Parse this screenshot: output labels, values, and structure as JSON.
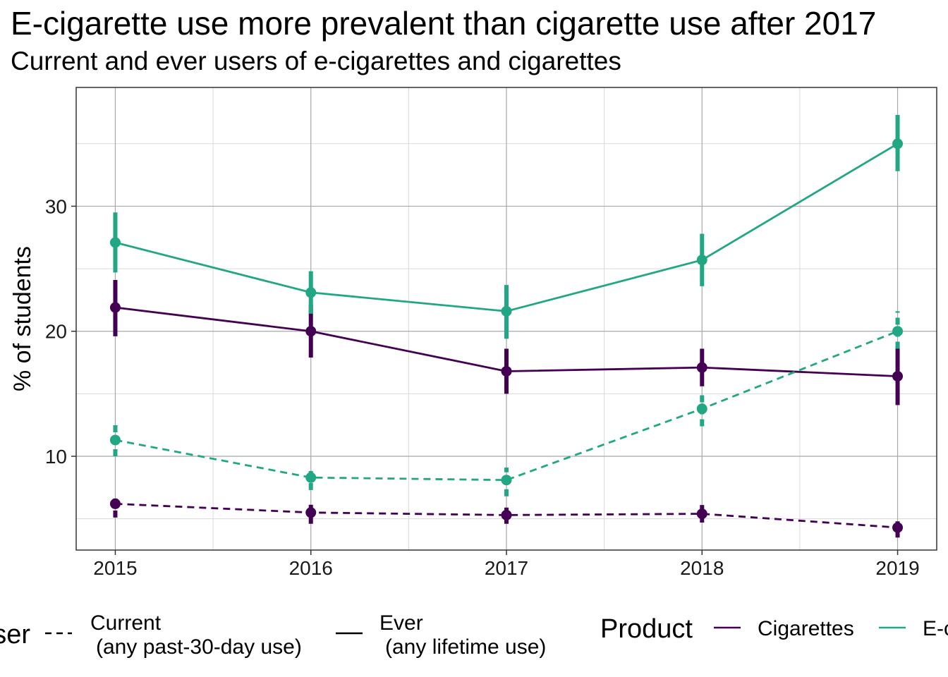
{
  "chart_data": {
    "type": "line",
    "title": "E-cigarette use more prevalent than cigarette use after 2017",
    "subtitle": "Current and ever users of e-cigarettes and cigarettes",
    "xlabel": "",
    "ylabel": "% of students",
    "x": [
      2015,
      2016,
      2017,
      2018,
      2019
    ],
    "x_tick_labels": [
      "2015",
      "2016",
      "2017",
      "2018",
      "2019"
    ],
    "y_ticks": [
      10,
      20,
      30
    ],
    "y_tick_labels": [
      "10",
      "20",
      "30"
    ],
    "xlim": [
      2014.8,
      2019.2
    ],
    "ylim": [
      2.5,
      39.5
    ],
    "grid": true,
    "series": [
      {
        "name": "Cigarettes — Ever",
        "product": "Cigarettes",
        "user": "Ever",
        "color": "#440154",
        "dash": "solid",
        "values": [
          21.9,
          20.0,
          16.8,
          17.1,
          16.4
        ],
        "lower": [
          19.6,
          17.9,
          15.0,
          15.6,
          14.1
        ],
        "upper": [
          24.1,
          22.1,
          18.6,
          18.6,
          18.7
        ]
      },
      {
        "name": "E-cigarettes — Ever",
        "product": "E-cigarettes",
        "user": "Ever",
        "color": "#21A784",
        "dash": "solid",
        "values": [
          27.1,
          23.1,
          21.6,
          25.7,
          35.0
        ],
        "lower": [
          24.7,
          21.4,
          19.4,
          23.6,
          32.8
        ],
        "upper": [
          29.5,
          24.8,
          23.7,
          27.8,
          37.3
        ]
      },
      {
        "name": "Cigarettes — Current",
        "product": "Cigarettes",
        "user": "Current",
        "color": "#440154",
        "dash": "dashed",
        "values": [
          6.2,
          5.5,
          5.3,
          5.4,
          4.3
        ],
        "lower": [
          5.1,
          4.6,
          4.6,
          4.7,
          3.5
        ],
        "upper": [
          7.0,
          6.3,
          5.9,
          6.1,
          4.8
        ]
      },
      {
        "name": "E-cigarettes — Current",
        "product": "E-cigarettes",
        "user": "Current",
        "color": "#21A784",
        "dash": "dashed",
        "values": [
          11.3,
          8.3,
          8.1,
          13.8,
          20.0
        ],
        "lower": [
          10.0,
          7.3,
          6.8,
          12.4,
          18.6
        ],
        "upper": [
          12.7,
          9.0,
          9.1,
          15.2,
          21.6
        ]
      }
    ],
    "legends": [
      {
        "title": "User",
        "position": "bottom-left",
        "items": [
          {
            "label_line1": "Current",
            "label_line2": "(any past-30-day use)",
            "dash": "dashed"
          },
          {
            "label_line1": "Ever",
            "label_line2": "(any lifetime use)",
            "dash": "solid"
          }
        ]
      },
      {
        "title": "Product",
        "position": "bottom-right",
        "items": [
          {
            "label": "Cigarettes",
            "color": "#440154"
          },
          {
            "label": "E-cigarettes",
            "color": "#21A784"
          }
        ]
      }
    ]
  }
}
